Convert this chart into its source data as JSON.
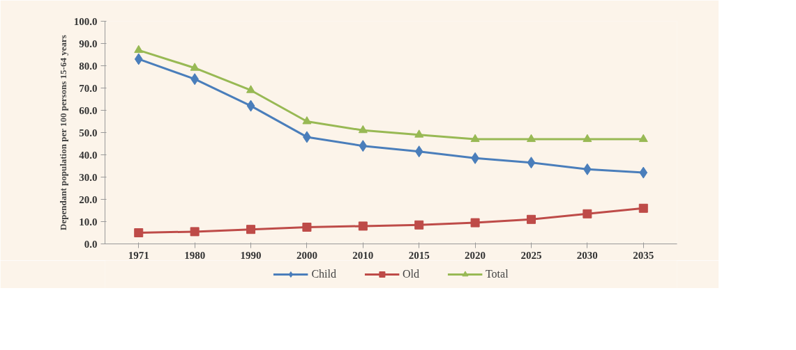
{
  "chart_data": {
    "type": "line",
    "ylabel": "Dependant population per 100 persons 15-64 years",
    "categories": [
      "1971",
      "1980",
      "1990",
      "2000",
      "2010",
      "2015",
      "2020",
      "2025",
      "2030",
      "2035"
    ],
    "series": [
      {
        "name": "Child",
        "color": "#4a7ebb",
        "marker": "diamond",
        "values": [
          83,
          74,
          62,
          48,
          44,
          41.5,
          38.5,
          36.5,
          33.5,
          32
        ]
      },
      {
        "name": "Old",
        "color": "#be4b48",
        "marker": "square",
        "values": [
          5,
          5.5,
          6.5,
          7.5,
          8,
          8.5,
          9.5,
          11,
          13.5,
          16
        ]
      },
      {
        "name": "Total",
        "color": "#98b954",
        "marker": "triangle",
        "values": [
          87,
          79,
          69,
          55,
          51,
          49,
          47,
          47,
          47,
          47
        ]
      }
    ],
    "ylim": [
      0,
      100
    ],
    "yticks": [
      {
        "value": 0,
        "label": "0.0"
      },
      {
        "value": 10,
        "label": "10.0"
      },
      {
        "value": 20,
        "label": "20.0"
      },
      {
        "value": 30,
        "label": "30.0"
      },
      {
        "value": 40,
        "label": "40.0"
      },
      {
        "value": 50,
        "label": "50.0"
      },
      {
        "value": 60,
        "label": "60.0"
      },
      {
        "value": 70,
        "label": "70.0"
      },
      {
        "value": 80,
        "label": "80.0"
      },
      {
        "value": 90,
        "label": "90.0"
      },
      {
        "value": 100,
        "label": "100.0"
      }
    ],
    "grid": false,
    "legend": "bottom"
  }
}
